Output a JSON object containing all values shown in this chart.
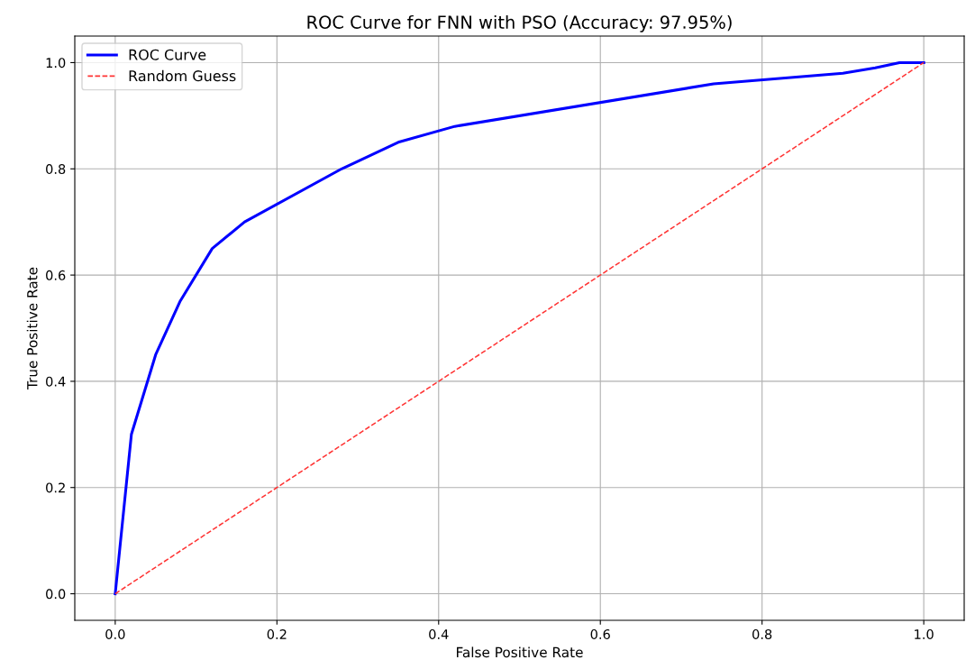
{
  "chart_data": {
    "type": "line",
    "title": "ROC Curve for FNN with PSO (Accuracy: 97.95%)",
    "xlabel": "False Positive Rate",
    "ylabel": "True Positive Rate",
    "series": [
      {
        "name": "ROC Curve",
        "color": "#0000ff",
        "line_style": "solid",
        "x": [
          0.0,
          0.02,
          0.05,
          0.08,
          0.12,
          0.16,
          0.28,
          0.35,
          0.42,
          0.74,
          0.9,
          0.94,
          0.97,
          1.0
        ],
        "values": [
          0.0,
          0.3,
          0.45,
          0.55,
          0.65,
          0.7,
          0.8,
          0.85,
          0.88,
          0.96,
          0.98,
          0.99,
          1.0,
          1.0
        ]
      },
      {
        "name": "Random Guess",
        "color": "#ff3333",
        "line_style": "dashed",
        "x": [
          0.0,
          1.0
        ],
        "values": [
          0.0,
          1.0
        ]
      }
    ],
    "xlim": [
      -0.05,
      1.05
    ],
    "ylim": [
      -0.05,
      1.05
    ],
    "xticks": [
      {
        "value": 0,
        "label": "0.0"
      },
      0.2,
      0.4,
      0.6,
      0.8,
      {
        "value": 1,
        "label": "1.0"
      }
    ],
    "yticks": [
      {
        "value": 0,
        "label": "0.0"
      },
      0.2,
      0.4,
      0.6,
      0.8,
      {
        "value": 1,
        "label": "1.0"
      }
    ],
    "grid": true,
    "legend": "upper left",
    "marker": "none"
  }
}
